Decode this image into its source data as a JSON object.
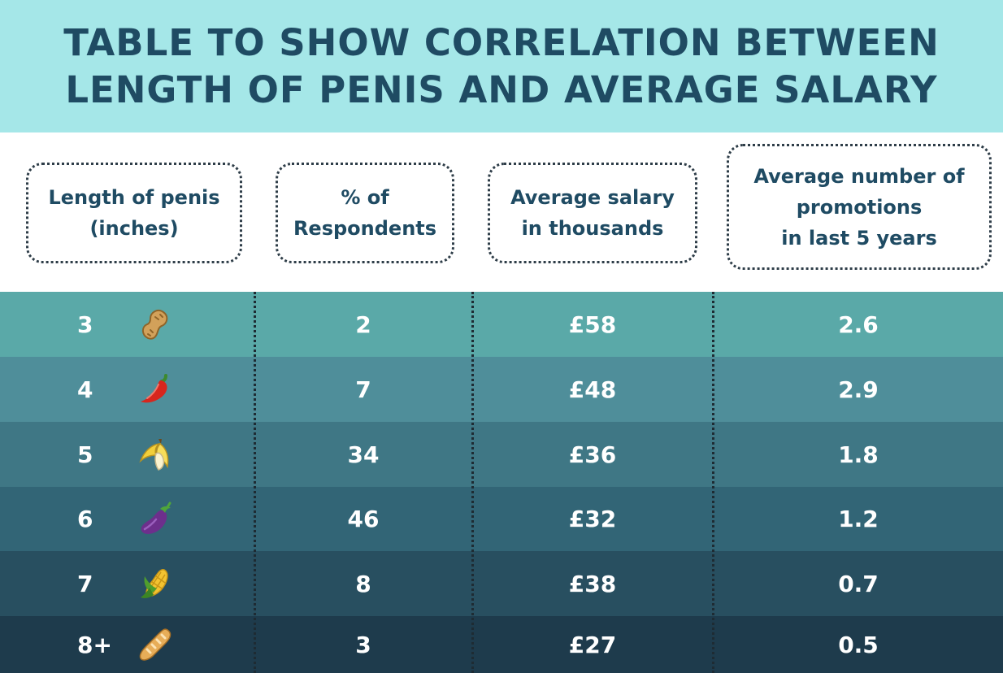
{
  "title": {
    "line1": "TABLE TO SHOW CORRELATION BETWEEN",
    "line2": "LENGTH OF PENIS AND AVERAGE SALARY"
  },
  "headers": [
    {
      "lines": [
        "Length of penis",
        "(inches)"
      ]
    },
    {
      "lines": [
        "% of",
        "Respondents"
      ]
    },
    {
      "lines": [
        "Average salary",
        "in thousands"
      ]
    },
    {
      "lines": [
        "Average number of",
        "promotions",
        "in last 5 years"
      ]
    }
  ],
  "row_colors": [
    "#5aa9a8",
    "#4f8e9a",
    "#3f7785",
    "#326576",
    "#284f60",
    "#1e3b4c"
  ],
  "chart_data": {
    "type": "table",
    "title": "TABLE TO SHOW CORRELATION BETWEEN LENGTH OF PENIS AND AVERAGE SALARY",
    "columns": [
      "Length of penis (inches)",
      "% of Respondents",
      "Average salary in thousands",
      "Average number of promotions in last 5 years"
    ],
    "rows": [
      {
        "length": "3",
        "icon": "peanut-icon",
        "respondents": "2",
        "salary": "£58",
        "promotions": "2.6"
      },
      {
        "length": "4",
        "icon": "chili-icon",
        "respondents": "7",
        "salary": "£48",
        "promotions": "2.9"
      },
      {
        "length": "5",
        "icon": "banana-icon",
        "respondents": "34",
        "salary": "£36",
        "promotions": "1.8"
      },
      {
        "length": "6",
        "icon": "eggplant-icon",
        "respondents": "46",
        "salary": "£32",
        "promotions": "1.2"
      },
      {
        "length": "7",
        "icon": "corn-icon",
        "respondents": "8",
        "salary": "£38",
        "promotions": "0.7"
      },
      {
        "length": "8+",
        "icon": "baguette-icon",
        "respondents": "3",
        "salary": "£27",
        "promotions": "0.5"
      }
    ]
  }
}
